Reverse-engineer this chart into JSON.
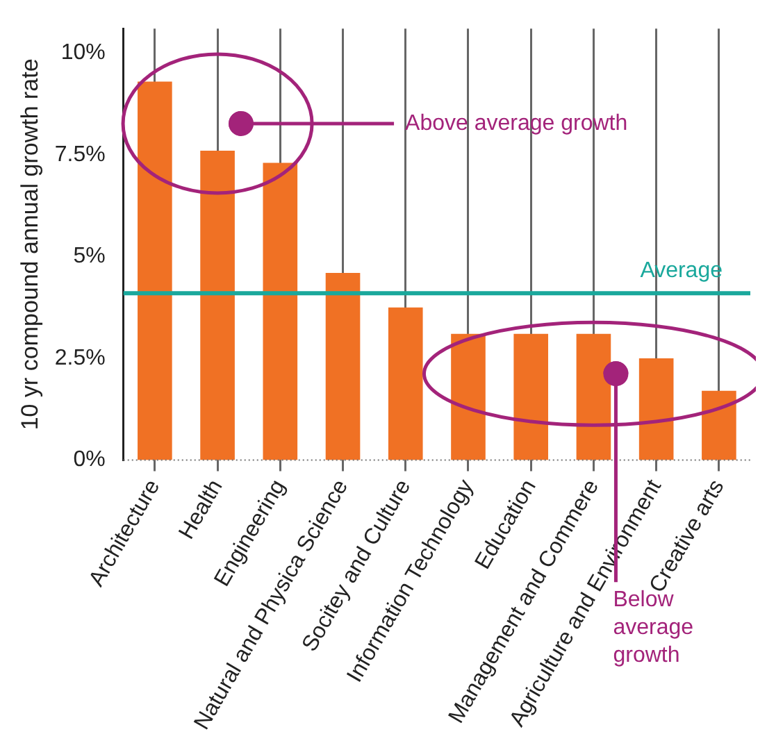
{
  "chart_data": {
    "type": "bar",
    "ylabel": "10 yr compound annual growth rate",
    "categories": [
      "Architecture",
      "Health",
      "Engineering",
      "Natural and Physica Science",
      "Socitey and Culture",
      "Information Technology",
      "Education",
      "Management and Commere",
      "Agriculture and Environment",
      "Creative arts"
    ],
    "values": [
      9.3,
      7.6,
      7.3,
      4.6,
      3.75,
      3.1,
      3.1,
      3.1,
      2.5,
      1.7
    ],
    "color": "#f07124",
    "ylim": [
      0,
      10.6
    ],
    "yticks": [
      {
        "value": 0,
        "label": "0%"
      },
      {
        "value": 2.5,
        "label": "2.5%"
      },
      {
        "value": 5,
        "label": "5%"
      },
      {
        "value": 7.5,
        "label": "7.5%"
      },
      {
        "value": 10,
        "label": "10%"
      }
    ],
    "grid": "x",
    "ref_lines": [
      {
        "axis": "y",
        "value": 4.1,
        "label": "Average",
        "color": "#1aa89c"
      }
    ],
    "annotations": [
      "Above average growth",
      "Below average growth"
    ]
  }
}
